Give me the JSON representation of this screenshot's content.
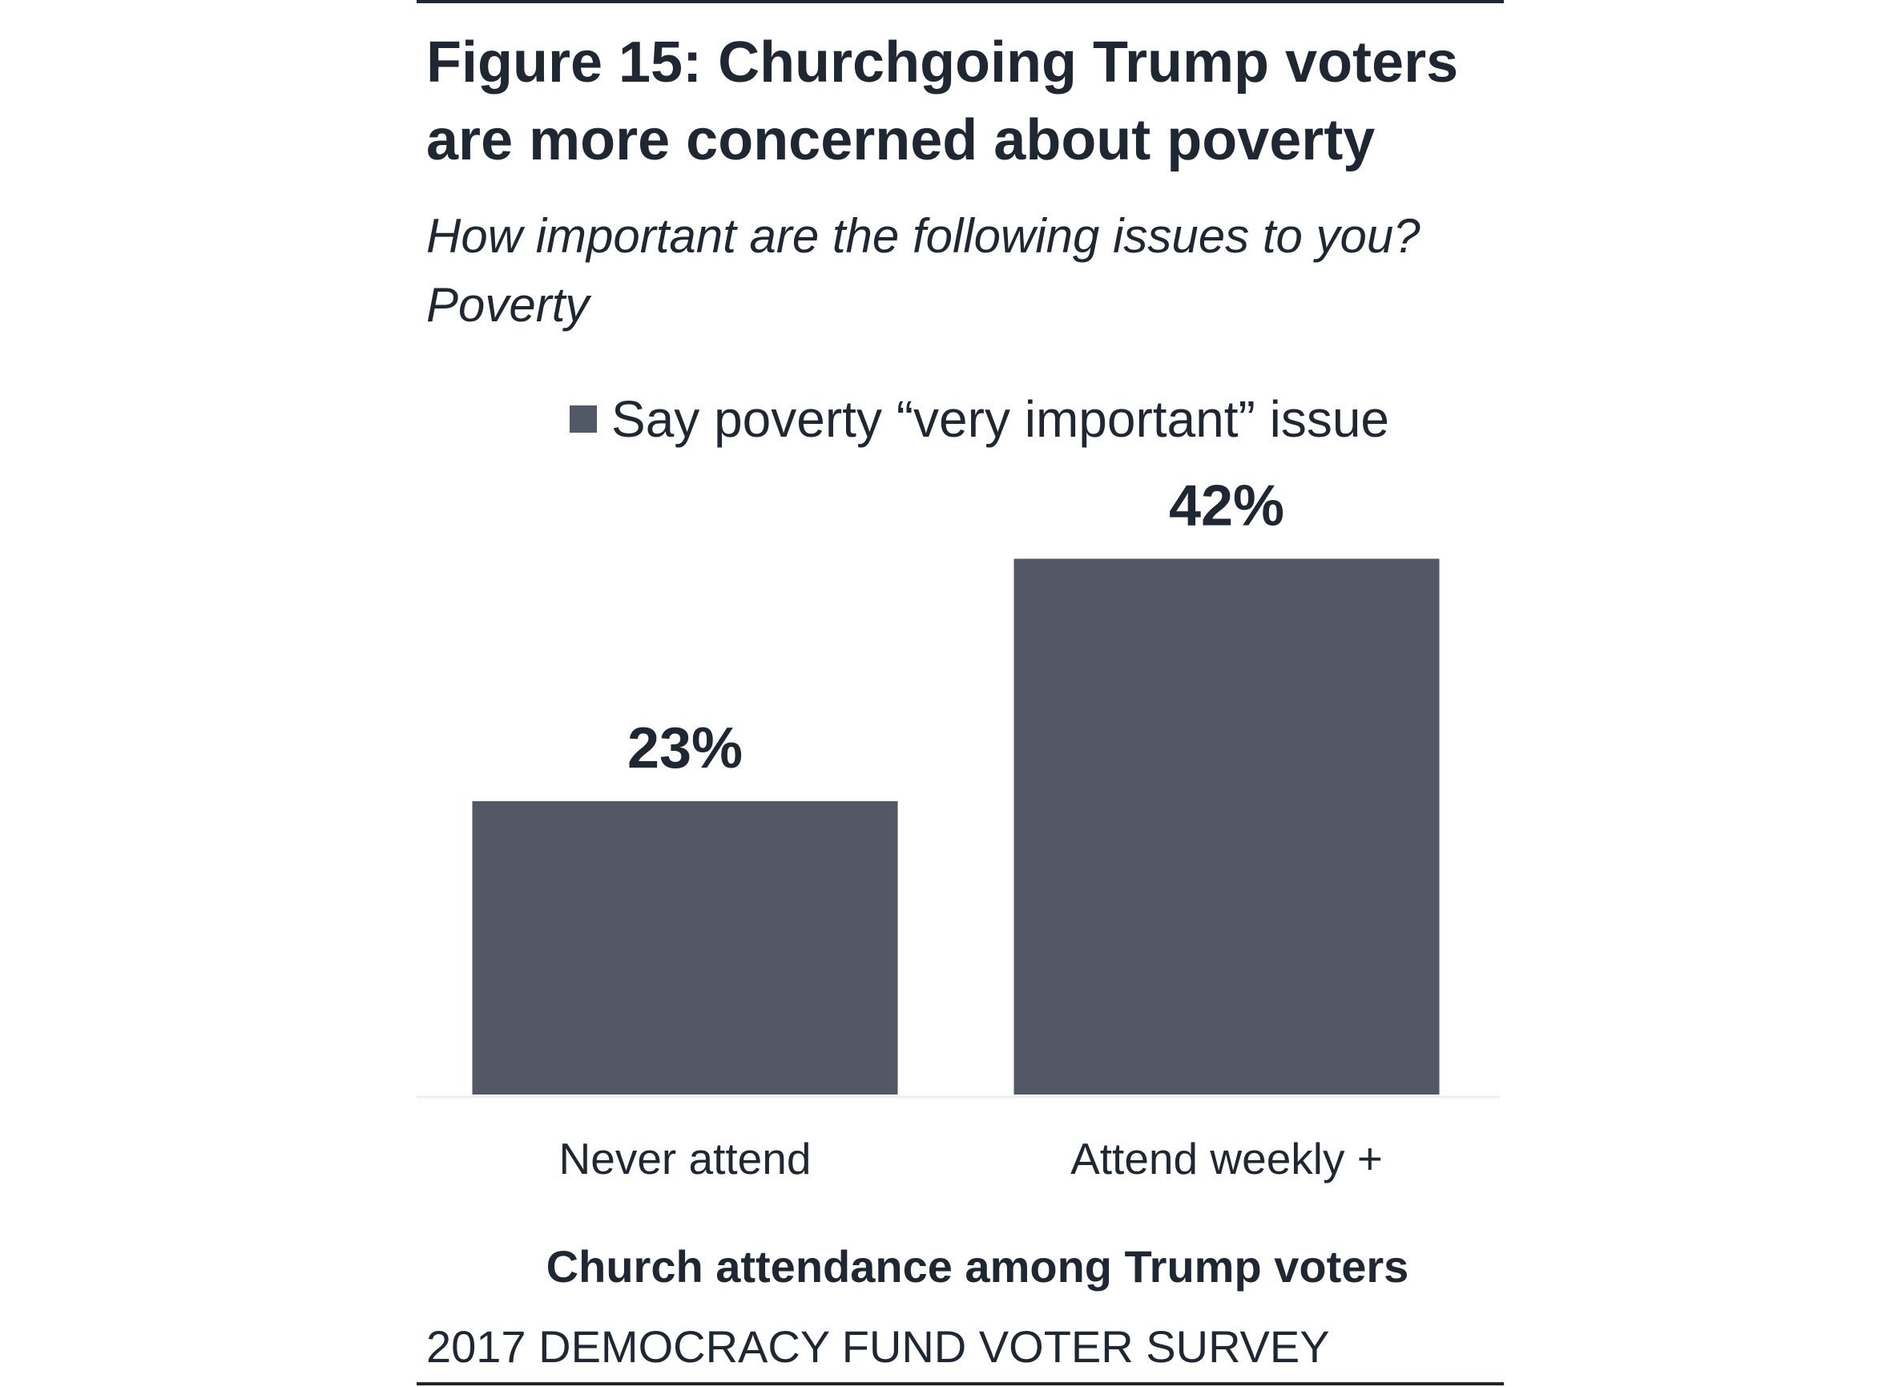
{
  "chart_data": {
    "type": "bar",
    "title": "Figure 15: Churchgoing Trump voters are more concerned about poverty",
    "subtitle": "How important are the following issues to you? Poverty",
    "categories": [
      "Never attend",
      "Attend weekly +"
    ],
    "series": [
      {
        "name": "Say poverty “very important” issue",
        "values": [
          23,
          42
        ],
        "labels": [
          "23%",
          "42%"
        ],
        "color": "#525866"
      }
    ],
    "xlabel": "Church attendance among Trump voters",
    "ylabel": "",
    "ylim": [
      0,
      42
    ],
    "grid": false,
    "legend_position": "top",
    "source": "2017 DEMOCRACY FUND VOTER SURVEY"
  }
}
